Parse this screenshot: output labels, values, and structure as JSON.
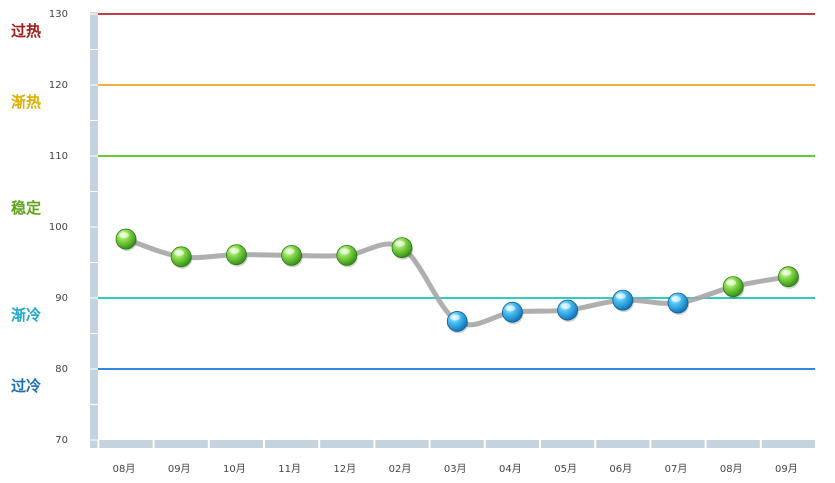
{
  "chart_data": {
    "type": "line",
    "title": "",
    "xlabel": "",
    "ylabel": "",
    "ylim": [
      70,
      130
    ],
    "yticks": [
      70,
      80,
      90,
      100,
      110,
      120,
      130
    ],
    "categories": [
      "08月",
      "09月",
      "10月",
      "11月",
      "12月",
      "02月",
      "03月",
      "04月",
      "05月",
      "06月",
      "07月",
      "08月",
      "09月"
    ],
    "series": [
      {
        "values": [
          98.3,
          95.8,
          96.1,
          96.0,
          96.0,
          97.1,
          86.7,
          88.0,
          88.3,
          89.7,
          89.3,
          91.6,
          93.0
        ]
      }
    ],
    "point_colors": [
      "green",
      "green",
      "green",
      "green",
      "green",
      "green",
      "blue",
      "blue",
      "blue",
      "blue",
      "blue",
      "green",
      "green"
    ],
    "threshold_lines": [
      {
        "value": 130,
        "color": "#c23b4b"
      },
      {
        "value": 120,
        "color": "#f0b040"
      },
      {
        "value": 110,
        "color": "#66cc33"
      },
      {
        "value": 90,
        "color": "#33ccbb"
      },
      {
        "value": 80,
        "color": "#3388dd"
      }
    ],
    "zone_labels": [
      {
        "text": "过热",
        "anchor_value": 127.6,
        "color": "#a31a1a"
      },
      {
        "text": "渐热",
        "anchor_value": 117.6,
        "color": "#e0b000"
      },
      {
        "text": "稳定",
        "anchor_value": 102.7,
        "color": "#5fa31a"
      },
      {
        "text": "渐冷",
        "anchor_value": 87.6,
        "color": "#20a8cc"
      },
      {
        "text": "过冷",
        "anchor_value": 77.6,
        "color": "#1a70b0"
      }
    ],
    "colors": {
      "axis_bar": "#c5d3df",
      "line": "#a6a6a6",
      "green_point": "#5cc12b",
      "blue_point": "#1a9ee0"
    },
    "grid": false,
    "legend": "none"
  }
}
